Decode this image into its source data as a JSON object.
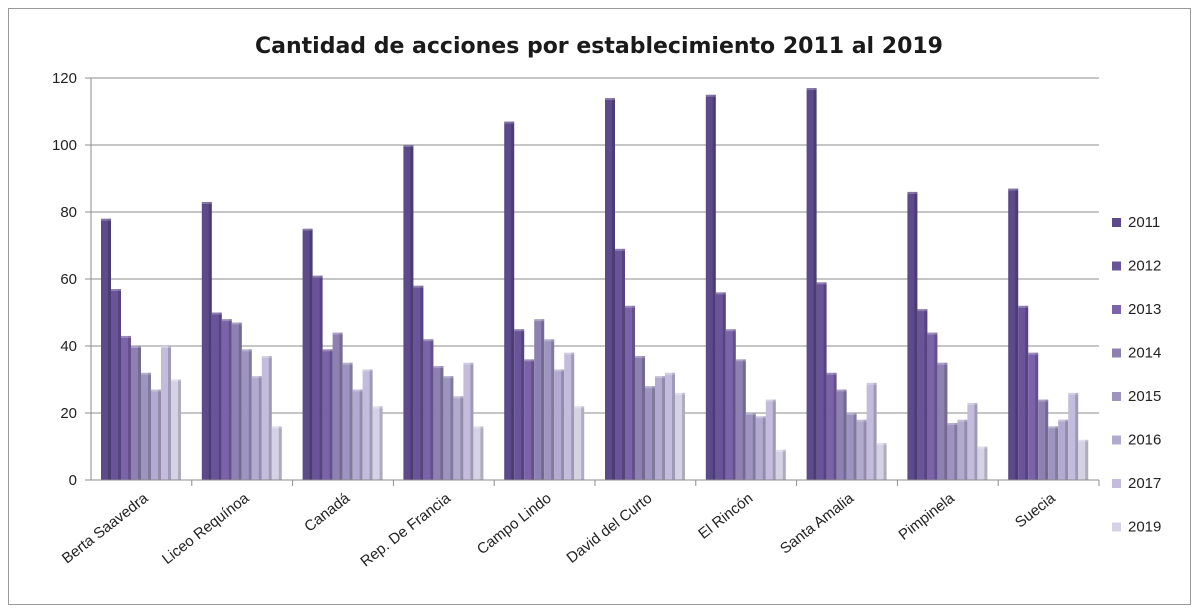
{
  "chart_data": {
    "type": "bar",
    "title": "Cantidad de acciones por establecimiento 2011 al 2019",
    "xlabel": "",
    "ylabel": "",
    "ylim": [
      0,
      120
    ],
    "yticks": [
      0,
      20,
      40,
      60,
      80,
      100,
      120
    ],
    "grid": true,
    "legend_position": "right",
    "categories": [
      "Berta Saavedra",
      "Liceo Requínoa",
      "Canadá",
      "Rep. De Francia",
      "Campo Lindo",
      "David del Curto",
      "El Rincón",
      "Santa Amalia",
      "Pimpinela",
      "Suecia"
    ],
    "series": [
      {
        "name": "2011",
        "color": "#5c4a8a",
        "values": [
          78,
          83,
          75,
          100,
          107,
          114,
          115,
          117,
          86,
          87
        ]
      },
      {
        "name": "2012",
        "color": "#6a5499",
        "values": [
          57,
          50,
          61,
          58,
          45,
          69,
          56,
          59,
          51,
          52
        ]
      },
      {
        "name": "2013",
        "color": "#7a63a8",
        "values": [
          43,
          48,
          39,
          42,
          36,
          52,
          45,
          32,
          44,
          38
        ]
      },
      {
        "name": "2014",
        "color": "#8e80b0",
        "values": [
          40,
          47,
          44,
          34,
          48,
          37,
          36,
          27,
          35,
          24
        ]
      },
      {
        "name": "2015",
        "color": "#9d95bf",
        "values": [
          32,
          39,
          35,
          31,
          42,
          28,
          20,
          20,
          17,
          16
        ]
      },
      {
        "name": "2016",
        "color": "#b2aacf",
        "values": [
          27,
          31,
          27,
          25,
          33,
          31,
          19,
          18,
          18,
          18
        ]
      },
      {
        "name": "2017",
        "color": "#c3bcdc",
        "values": [
          40,
          37,
          33,
          35,
          38,
          32,
          24,
          29,
          23,
          26
        ]
      },
      {
        "name": "2019",
        "color": "#d6d2e6",
        "values": [
          30,
          16,
          22,
          16,
          22,
          26,
          9,
          11,
          10,
          12
        ]
      }
    ]
  }
}
